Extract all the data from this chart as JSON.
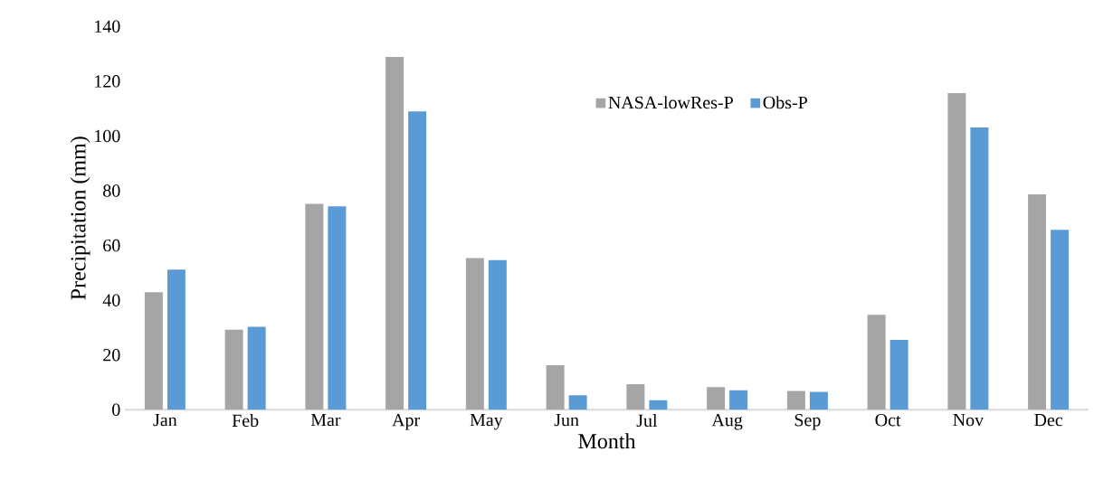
{
  "chart_data": {
    "type": "bar",
    "xlabel": "Month",
    "ylabel": "Precipitation (mm)",
    "categories": [
      "Jan",
      "Feb",
      "Mar",
      "Apr",
      "May",
      "Jun",
      "Jul",
      "Aug",
      "Sep",
      "Oct",
      "Nov",
      "Dec"
    ],
    "series": [
      {
        "name": "NASA-lowRes-P",
        "color": "#a5a5a5",
        "values": [
          42.9,
          29.2,
          75.2,
          128.9,
          55.4,
          16.3,
          9.3,
          8.3,
          6.9,
          34.7,
          115.7,
          78.7
        ]
      },
      {
        "name": "Obs-P",
        "color": "#5b9bd5",
        "values": [
          51.2,
          30.3,
          74.3,
          109.0,
          54.7,
          5.3,
          3.5,
          7.1,
          6.5,
          25.5,
          103.1,
          65.7
        ]
      }
    ],
    "ylim": [
      0,
      140
    ],
    "yticks": [
      0,
      20,
      40,
      60,
      80,
      100,
      120,
      140
    ],
    "legend": "top right"
  }
}
